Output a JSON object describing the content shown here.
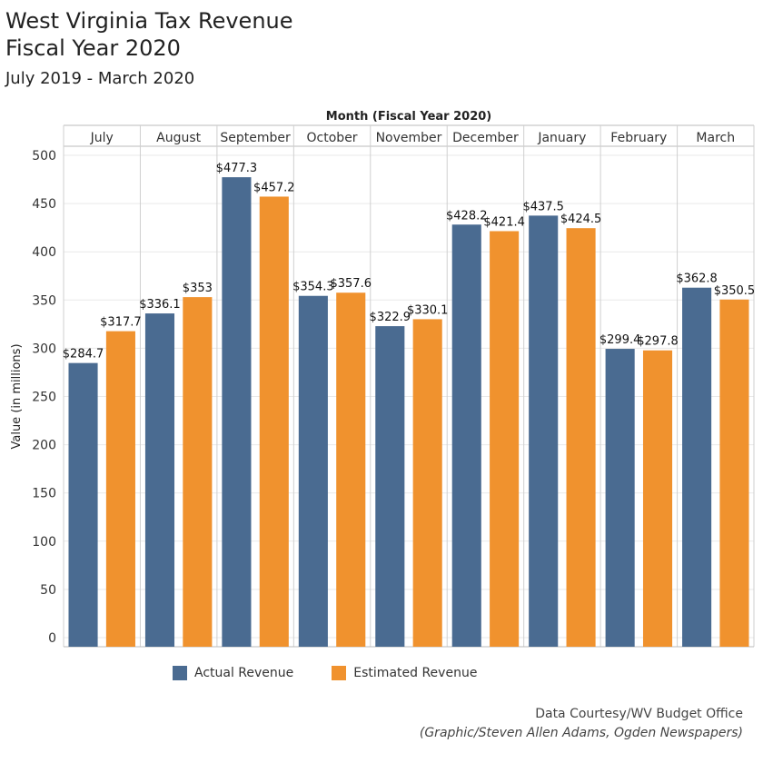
{
  "header": {
    "title_line1": "West Virginia Tax Revenue",
    "title_line2": "Fiscal Year 2020",
    "subtitle": "July 2019 - March 2020"
  },
  "footer": {
    "source": "Data Courtesy/WV Budget Office",
    "credit": "(Graphic/Steven Allen Adams, Ogden Newspapers)"
  },
  "colors": {
    "actual": "#4a6b91",
    "estimated": "#f0922e"
  },
  "chart_data": {
    "type": "bar",
    "title": "West Virginia Tax Revenue Fiscal Year 2020",
    "xlabel": "Month (Fiscal Year 2020)",
    "ylabel": "Value (in millions)",
    "ylim": [
      0,
      500
    ],
    "yticks": [
      0,
      50,
      100,
      150,
      200,
      250,
      300,
      350,
      400,
      450,
      500
    ],
    "categories": [
      "July",
      "August",
      "September",
      "October",
      "November",
      "December",
      "January",
      "February",
      "March"
    ],
    "series": [
      {
        "name": "Actual Revenue",
        "values": [
          284.7,
          336.1,
          477.3,
          354.3,
          322.9,
          428.2,
          437.5,
          299.4,
          362.8
        ],
        "labels": [
          "$284.7",
          "$336.1",
          "$477.3",
          "$354.3",
          "$322.9",
          "$428.2",
          "$437.5",
          "$299.4",
          "$362.8"
        ]
      },
      {
        "name": "Estimated Revenue",
        "values": [
          317.7,
          353,
          457.2,
          357.6,
          330.1,
          421.4,
          424.5,
          297.8,
          350.5
        ],
        "labels": [
          "$317.7",
          "$353",
          "$457.2",
          "$357.6",
          "$330.1",
          "$421.4",
          "$424.5",
          "$297.8",
          "$350.5"
        ]
      }
    ],
    "legend": [
      "Actual Revenue",
      "Estimated Revenue"
    ],
    "legend_position": "bottom"
  }
}
